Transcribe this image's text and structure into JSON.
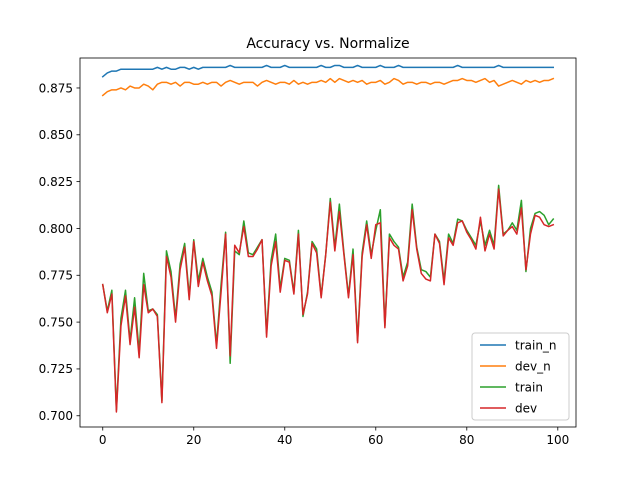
{
  "chart_data": {
    "type": "line",
    "title": "Accuracy vs. Normalize",
    "xlabel": "",
    "ylabel": "",
    "xlim": [
      -5,
      104
    ],
    "ylim": [
      0.694,
      0.891
    ],
    "xticks": [
      0,
      20,
      40,
      60,
      80,
      100
    ],
    "yticks": [
      0.7,
      0.725,
      0.75,
      0.775,
      0.8,
      0.825,
      0.85,
      0.875
    ],
    "ytick_labels": [
      "0.700",
      "0.725",
      "0.750",
      "0.775",
      "0.800",
      "0.825",
      "0.850",
      "0.875"
    ],
    "legend": {
      "placement": "lower-right"
    },
    "series": [
      {
        "name": "train_n",
        "color": "#1f77b4",
        "x": [
          0,
          1,
          2,
          3,
          4,
          5,
          6,
          7,
          8,
          9,
          10,
          11,
          12,
          13,
          14,
          15,
          16,
          17,
          18,
          19,
          20,
          21,
          22,
          23,
          24,
          25,
          26,
          27,
          28,
          29,
          30,
          31,
          32,
          33,
          34,
          35,
          36,
          37,
          38,
          39,
          40,
          41,
          42,
          43,
          44,
          45,
          46,
          47,
          48,
          49,
          50,
          51,
          52,
          53,
          54,
          55,
          56,
          57,
          58,
          59,
          60,
          61,
          62,
          63,
          64,
          65,
          66,
          67,
          68,
          69,
          70,
          71,
          72,
          73,
          74,
          75,
          76,
          77,
          78,
          79,
          80,
          81,
          82,
          83,
          84,
          85,
          86,
          87,
          88,
          89,
          90,
          91,
          92,
          93,
          94,
          95,
          96,
          97,
          98,
          99
        ],
        "values": [
          0.881,
          0.883,
          0.884,
          0.884,
          0.885,
          0.885,
          0.885,
          0.885,
          0.885,
          0.885,
          0.885,
          0.885,
          0.886,
          0.885,
          0.886,
          0.885,
          0.885,
          0.886,
          0.886,
          0.885,
          0.886,
          0.885,
          0.886,
          0.886,
          0.886,
          0.886,
          0.886,
          0.886,
          0.887,
          0.886,
          0.886,
          0.886,
          0.886,
          0.886,
          0.886,
          0.886,
          0.887,
          0.886,
          0.886,
          0.886,
          0.887,
          0.886,
          0.886,
          0.886,
          0.886,
          0.886,
          0.886,
          0.886,
          0.887,
          0.886,
          0.886,
          0.887,
          0.887,
          0.886,
          0.886,
          0.886,
          0.887,
          0.886,
          0.886,
          0.886,
          0.886,
          0.887,
          0.886,
          0.886,
          0.886,
          0.887,
          0.886,
          0.886,
          0.886,
          0.886,
          0.886,
          0.886,
          0.886,
          0.886,
          0.886,
          0.886,
          0.886,
          0.886,
          0.887,
          0.886,
          0.886,
          0.886,
          0.886,
          0.886,
          0.886,
          0.886,
          0.886,
          0.887,
          0.886,
          0.886,
          0.886,
          0.886,
          0.886,
          0.886,
          0.886,
          0.886,
          0.886,
          0.886,
          0.886,
          0.886
        ]
      },
      {
        "name": "dev_n",
        "color": "#ff7f0e",
        "x": [
          0,
          1,
          2,
          3,
          4,
          5,
          6,
          7,
          8,
          9,
          10,
          11,
          12,
          13,
          14,
          15,
          16,
          17,
          18,
          19,
          20,
          21,
          22,
          23,
          24,
          25,
          26,
          27,
          28,
          29,
          30,
          31,
          32,
          33,
          34,
          35,
          36,
          37,
          38,
          39,
          40,
          41,
          42,
          43,
          44,
          45,
          46,
          47,
          48,
          49,
          50,
          51,
          52,
          53,
          54,
          55,
          56,
          57,
          58,
          59,
          60,
          61,
          62,
          63,
          64,
          65,
          66,
          67,
          68,
          69,
          70,
          71,
          72,
          73,
          74,
          75,
          76,
          77,
          78,
          79,
          80,
          81,
          82,
          83,
          84,
          85,
          86,
          87,
          88,
          89,
          90,
          91,
          92,
          93,
          94,
          95,
          96,
          97,
          98,
          99
        ],
        "values": [
          0.871,
          0.873,
          0.874,
          0.874,
          0.875,
          0.874,
          0.876,
          0.875,
          0.875,
          0.877,
          0.876,
          0.874,
          0.877,
          0.878,
          0.878,
          0.877,
          0.878,
          0.876,
          0.878,
          0.878,
          0.877,
          0.877,
          0.878,
          0.877,
          0.878,
          0.878,
          0.876,
          0.878,
          0.879,
          0.878,
          0.877,
          0.878,
          0.878,
          0.878,
          0.876,
          0.878,
          0.879,
          0.878,
          0.877,
          0.878,
          0.878,
          0.877,
          0.879,
          0.877,
          0.878,
          0.877,
          0.878,
          0.878,
          0.879,
          0.878,
          0.88,
          0.878,
          0.88,
          0.879,
          0.878,
          0.879,
          0.878,
          0.879,
          0.877,
          0.878,
          0.878,
          0.879,
          0.877,
          0.878,
          0.88,
          0.879,
          0.877,
          0.878,
          0.878,
          0.877,
          0.878,
          0.878,
          0.877,
          0.878,
          0.878,
          0.877,
          0.878,
          0.879,
          0.879,
          0.88,
          0.879,
          0.879,
          0.878,
          0.879,
          0.88,
          0.878,
          0.879,
          0.876,
          0.877,
          0.878,
          0.879,
          0.878,
          0.877,
          0.879,
          0.878,
          0.879,
          0.878,
          0.879,
          0.879,
          0.88
        ]
      },
      {
        "name": "train",
        "color": "#2ca02c",
        "x": [
          0,
          1,
          2,
          3,
          4,
          5,
          6,
          7,
          8,
          9,
          10,
          11,
          12,
          13,
          14,
          15,
          16,
          17,
          18,
          19,
          20,
          21,
          22,
          23,
          24,
          25,
          26,
          27,
          28,
          29,
          30,
          31,
          32,
          33,
          34,
          35,
          36,
          37,
          38,
          39,
          40,
          41,
          42,
          43,
          44,
          45,
          46,
          47,
          48,
          49,
          50,
          51,
          52,
          53,
          54,
          55,
          56,
          57,
          58,
          59,
          60,
          61,
          62,
          63,
          64,
          65,
          66,
          67,
          68,
          69,
          70,
          71,
          72,
          73,
          74,
          75,
          76,
          77,
          78,
          79,
          80,
          81,
          82,
          83,
          84,
          85,
          86,
          87,
          88,
          89,
          90,
          91,
          92,
          93,
          94,
          95,
          96,
          97,
          98,
          99
        ],
        "values": [
          0.77,
          0.756,
          0.767,
          0.703,
          0.752,
          0.767,
          0.74,
          0.763,
          0.734,
          0.776,
          0.756,
          0.757,
          0.754,
          0.708,
          0.788,
          0.777,
          0.752,
          0.781,
          0.792,
          0.764,
          0.794,
          0.772,
          0.784,
          0.774,
          0.766,
          0.738,
          0.77,
          0.798,
          0.728,
          0.788,
          0.786,
          0.804,
          0.787,
          0.786,
          0.79,
          0.794,
          0.744,
          0.783,
          0.797,
          0.768,
          0.784,
          0.783,
          0.766,
          0.799,
          0.753,
          0.766,
          0.793,
          0.789,
          0.764,
          0.786,
          0.816,
          0.79,
          0.813,
          0.787,
          0.764,
          0.789,
          0.74,
          0.787,
          0.804,
          0.786,
          0.799,
          0.81,
          0.748,
          0.797,
          0.793,
          0.79,
          0.774,
          0.782,
          0.813,
          0.79,
          0.778,
          0.777,
          0.774,
          0.797,
          0.793,
          0.772,
          0.797,
          0.792,
          0.805,
          0.804,
          0.799,
          0.795,
          0.791,
          0.804,
          0.791,
          0.799,
          0.791,
          0.823,
          0.797,
          0.799,
          0.803,
          0.799,
          0.815,
          0.777,
          0.8,
          0.808,
          0.809,
          0.807,
          0.802,
          0.805
        ]
      },
      {
        "name": "dev",
        "color": "#d62728",
        "x": [
          0,
          1,
          2,
          3,
          4,
          5,
          6,
          7,
          8,
          9,
          10,
          11,
          12,
          13,
          14,
          15,
          16,
          17,
          18,
          19,
          20,
          21,
          22,
          23,
          24,
          25,
          26,
          27,
          28,
          29,
          30,
          31,
          32,
          33,
          34,
          35,
          36,
          37,
          38,
          39,
          40,
          41,
          42,
          43,
          44,
          45,
          46,
          47,
          48,
          49,
          50,
          51,
          52,
          53,
          54,
          55,
          56,
          57,
          58,
          59,
          60,
          61,
          62,
          63,
          64,
          65,
          66,
          67,
          68,
          69,
          70,
          71,
          72,
          73,
          74,
          75,
          76,
          77,
          78,
          79,
          80,
          81,
          82,
          83,
          84,
          85,
          86,
          87,
          88,
          89,
          90,
          91,
          92,
          93,
          94,
          95,
          96,
          97,
          98,
          99
        ],
        "values": [
          0.77,
          0.755,
          0.765,
          0.702,
          0.748,
          0.764,
          0.738,
          0.758,
          0.731,
          0.77,
          0.755,
          0.757,
          0.753,
          0.707,
          0.785,
          0.774,
          0.75,
          0.778,
          0.79,
          0.762,
          0.793,
          0.769,
          0.782,
          0.772,
          0.764,
          0.736,
          0.766,
          0.797,
          0.732,
          0.791,
          0.787,
          0.801,
          0.785,
          0.785,
          0.789,
          0.794,
          0.742,
          0.78,
          0.793,
          0.766,
          0.783,
          0.782,
          0.765,
          0.797,
          0.754,
          0.765,
          0.792,
          0.787,
          0.763,
          0.786,
          0.814,
          0.788,
          0.809,
          0.786,
          0.763,
          0.786,
          0.739,
          0.785,
          0.802,
          0.784,
          0.802,
          0.803,
          0.747,
          0.795,
          0.791,
          0.789,
          0.772,
          0.78,
          0.81,
          0.789,
          0.776,
          0.773,
          0.772,
          0.797,
          0.792,
          0.77,
          0.795,
          0.791,
          0.803,
          0.804,
          0.798,
          0.794,
          0.789,
          0.806,
          0.788,
          0.797,
          0.789,
          0.821,
          0.796,
          0.799,
          0.801,
          0.797,
          0.811,
          0.778,
          0.797,
          0.807,
          0.806,
          0.802,
          0.801,
          0.802
        ]
      }
    ]
  }
}
